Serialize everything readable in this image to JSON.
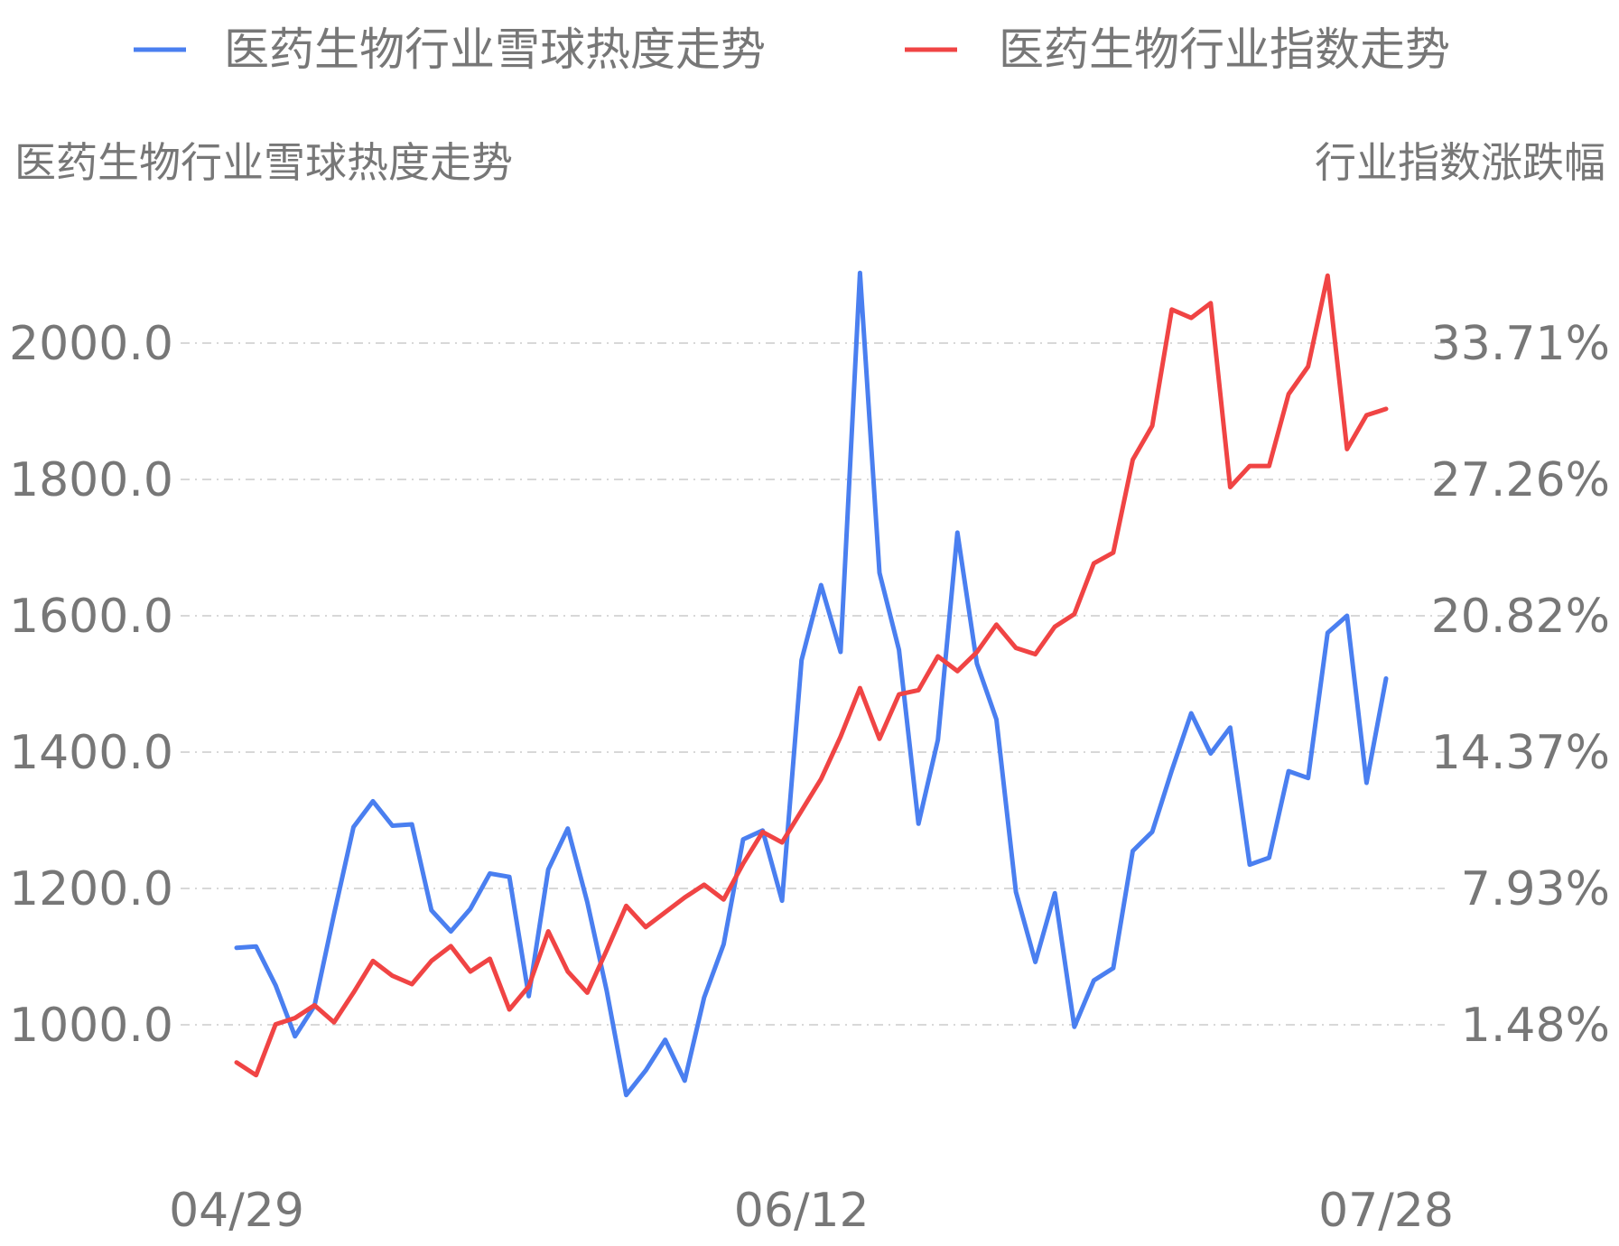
{
  "legend": {
    "heat_label": "医药生物行业雪球热度走势",
    "index_label": "医药生物行业指数走势"
  },
  "axes": {
    "left_title": "医药生物行业雪球热度走势",
    "right_title": "行业指数涨跌幅"
  },
  "colors": {
    "heat": "#4a7ff0",
    "index": "#f04444",
    "grid": "#cccccc",
    "text": "#777777"
  },
  "chart_data": {
    "type": "line",
    "x_ticks": [
      "04/29",
      "06/12",
      "07/28"
    ],
    "left_axis": {
      "ticks": [
        "1000.0",
        "1200.0",
        "1400.0",
        "1600.0",
        "1800.0",
        "2000.0"
      ],
      "ylim": [
        850,
        2100
      ]
    },
    "right_axis": {
      "ticks": [
        "1.48%",
        "7.93%",
        "14.37%",
        "20.82%",
        "27.26%",
        "33.71%"
      ],
      "ylim": [
        -3.36,
        36.95
      ]
    },
    "grid": "horizontal dashed",
    "legend_position": "top",
    "series": [
      {
        "name": "医药生物行业雪球热度走势",
        "axis": "left",
        "values": [
          1113,
          1115,
          1058,
          983,
          1028,
          1162,
          1290,
          1328,
          1292,
          1294,
          1168,
          1137,
          1170,
          1222,
          1217,
          1042,
          1228,
          1288,
          1180,
          1050,
          897,
          933,
          978,
          918,
          1040,
          1118,
          1272,
          1285,
          1182,
          1535,
          1645,
          1547,
          2103,
          1663,
          1550,
          1295,
          1418,
          1722,
          1530,
          1448,
          1195,
          1092,
          1193,
          997,
          1065,
          1083,
          1255,
          1283,
          1373,
          1457,
          1398,
          1436,
          1235,
          1245,
          1372,
          1362,
          1575,
          1600,
          1355,
          1508
        ]
      },
      {
        "name": "医药生物行业指数走势",
        "axis": "right",
        "values": [
          -0.3,
          -0.9,
          1.5,
          1.8,
          2.4,
          1.6,
          3.0,
          4.5,
          3.8,
          3.4,
          4.5,
          5.2,
          4.0,
          4.6,
          2.2,
          3.3,
          5.9,
          4.0,
          3.0,
          5.0,
          7.1,
          6.1,
          6.8,
          7.5,
          8.1,
          7.4,
          9.1,
          10.6,
          10.1,
          11.6,
          13.1,
          15.1,
          17.4,
          15.0,
          17.1,
          17.3,
          18.9,
          18.2,
          19.1,
          20.4,
          19.3,
          19.0,
          20.3,
          20.9,
          23.3,
          23.8,
          28.2,
          29.8,
          35.3,
          34.9,
          35.6,
          26.9,
          27.9,
          27.9,
          31.3,
          32.6,
          36.9,
          28.7,
          30.3,
          30.6
        ]
      }
    ]
  }
}
